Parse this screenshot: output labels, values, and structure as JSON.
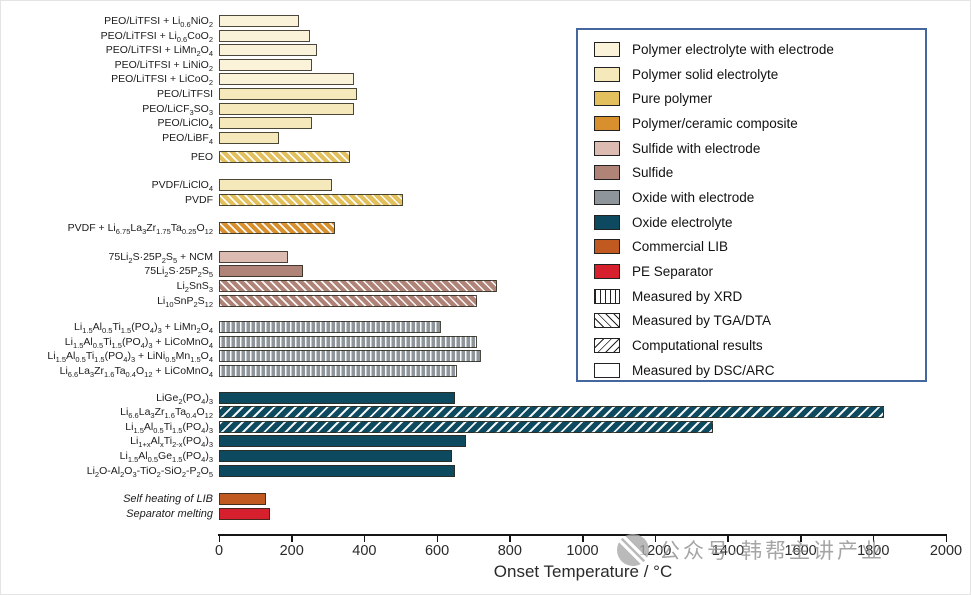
{
  "watermark": {
    "text": "公众号·韩帮主讲产业"
  },
  "chart_data": {
    "type": "bar",
    "orientation": "horizontal",
    "xlabel": "Onset Temperature / °C",
    "xlim": [
      0,
      2000
    ],
    "xticks": [
      0,
      200,
      400,
      600,
      800,
      1000,
      1200,
      1400,
      1600,
      1800,
      2000
    ],
    "grid": false,
    "legend_position": "upper right",
    "categories": {
      "polymer_with_electrode": {
        "label": "Polymer electrolyte with electrode",
        "color": "#FAF3D9"
      },
      "polymer_solid": {
        "label": "Polymer solid electrolyte",
        "color": "#F5E9BC"
      },
      "pure_polymer": {
        "label": "Pure polymer",
        "color": "#E2C05E"
      },
      "composite": {
        "label": "Polymer/ceramic composite",
        "color": "#D8902F"
      },
      "sulfide_with_electrode": {
        "label": "Sulfide with electrode",
        "color": "#DCBBB3"
      },
      "sulfide": {
        "label": "Sulfide",
        "color": "#B08378"
      },
      "oxide_with_electrode": {
        "label": "Oxide with electrode",
        "color": "#8E969C"
      },
      "oxide": {
        "label": "Oxide electrolyte",
        "color": "#0E4A5F"
      },
      "commercial_lib": {
        "label": "Commercial LIB",
        "color": "#C05A21"
      },
      "pe_separator": {
        "label": "PE Separator",
        "color": "#D6202D"
      }
    },
    "legend": [
      {
        "label": "Polymer electrolyte with electrode",
        "color": "#FAF3D9"
      },
      {
        "label": "Polymer solid electrolyte",
        "color": "#F5E9BC"
      },
      {
        "label": "Pure polymer",
        "color": "#E2C05E"
      },
      {
        "label": "Polymer/ceramic composite",
        "color": "#D8902F"
      },
      {
        "label": "Sulfide with electrode",
        "color": "#DCBBB3"
      },
      {
        "label": "Sulfide",
        "color": "#B08378"
      },
      {
        "label": "Oxide with electrode",
        "color": "#8E969C"
      },
      {
        "label": "Oxide electrolyte",
        "color": "#0E4A5F"
      },
      {
        "label": "Commercial LIB",
        "color": "#C05A21"
      },
      {
        "label": "PE Separator",
        "color": "#D6202D"
      },
      {
        "label": "Measured by XRD",
        "pattern": "vertical"
      },
      {
        "label": "Measured by TGA/DTA",
        "pattern": "diag-forward"
      },
      {
        "label": "Computational results",
        "pattern": "diag-back"
      },
      {
        "label": "Measured by DSC/ARC",
        "pattern": "none"
      }
    ],
    "bars": [
      {
        "label": "PEO/LiTFSI + Li~0.6~NiO~2~",
        "value": 220,
        "category": "polymer_with_electrode",
        "hatch": "none",
        "group": 0,
        "italic": false
      },
      {
        "label": "PEO/LiTFSI + Li~0.6~CoO~2~",
        "value": 250,
        "category": "polymer_with_electrode",
        "hatch": "none",
        "group": 0,
        "italic": false
      },
      {
        "label": "PEO/LiTFSI + LiMn~2~O~4~",
        "value": 270,
        "category": "polymer_with_electrode",
        "hatch": "none",
        "group": 0,
        "italic": false
      },
      {
        "label": "PEO/LiTFSI + LiNiO~2~",
        "value": 255,
        "category": "polymer_with_electrode",
        "hatch": "none",
        "group": 0,
        "italic": false
      },
      {
        "label": "PEO/LiTFSI + LiCoO~2~",
        "value": 370,
        "category": "polymer_with_electrode",
        "hatch": "none",
        "group": 0,
        "italic": false
      },
      {
        "label": "PEO/LiTFSI",
        "value": 380,
        "category": "polymer_solid",
        "hatch": "none",
        "group": 0,
        "italic": false
      },
      {
        "label": "PEO/LiCF~3~SO~3~",
        "value": 370,
        "category": "polymer_solid",
        "hatch": "none",
        "group": 0,
        "italic": false
      },
      {
        "label": "PEO/LiClO~4~",
        "value": 255,
        "category": "polymer_solid",
        "hatch": "none",
        "group": 0,
        "italic": false
      },
      {
        "label": "PEO/LiBF~4~",
        "value": 165,
        "category": "polymer_solid",
        "hatch": "none",
        "group": 0,
        "italic": false
      },
      {
        "label": "PEO",
        "value": 360,
        "category": "pure_polymer",
        "hatch": "tga",
        "group": 1,
        "italic": false
      },
      {
        "label": "PVDF/LiClO~4~",
        "value": 310,
        "category": "polymer_solid",
        "hatch": "none",
        "group": 2,
        "italic": false
      },
      {
        "label": "PVDF",
        "value": 505,
        "category": "pure_polymer",
        "hatch": "tga",
        "group": 2,
        "italic": false
      },
      {
        "label": "PVDF + Li~6.75~La~3~Zr~1.75~Ta~0.25~O~12~",
        "value": 320,
        "category": "composite",
        "hatch": "tga",
        "group": 3,
        "italic": false
      },
      {
        "label": "75Li~2~S·25P~2~S~5~ + NCM",
        "value": 190,
        "category": "sulfide_with_electrode",
        "hatch": "none",
        "group": 4,
        "italic": false
      },
      {
        "label": "75Li~2~S·25P~2~S~5~",
        "value": 230,
        "category": "sulfide",
        "hatch": "none",
        "group": 4,
        "italic": false
      },
      {
        "label": "Li~2~SnS~3~",
        "value": 765,
        "category": "sulfide",
        "hatch": "tga",
        "group": 4,
        "italic": false
      },
      {
        "label": "Li~10~SnP~2~S~12~",
        "value": 710,
        "category": "sulfide",
        "hatch": "tga",
        "group": 4,
        "italic": false
      },
      {
        "label": "Li~1.5~Al~0.5~Ti~1.5~(PO~4~)~3~ + LiMn~2~O~4~",
        "value": 610,
        "category": "oxide_with_electrode",
        "hatch": "xrd",
        "group": 5,
        "italic": false
      },
      {
        "label": "Li~1.5~Al~0.5~Ti~1.5~(PO~4~)~3~ + LiCoMnO~4~",
        "value": 710,
        "category": "oxide_with_electrode",
        "hatch": "xrd",
        "group": 5,
        "italic": false
      },
      {
        "label": "Li~1.5~Al~0.5~Ti~1.5~(PO~4~)~3~ + LiNi~0.5~Mn~1.5~O~4~",
        "value": 720,
        "category": "oxide_with_electrode",
        "hatch": "xrd",
        "group": 5,
        "italic": false
      },
      {
        "label": "Li~6.6~La~3~Zr~1.6~Ta~0.4~O~12~ + LiCoMnO~4~",
        "value": 655,
        "category": "oxide_with_electrode",
        "hatch": "xrd",
        "group": 5,
        "italic": false
      },
      {
        "label": "LiGe~2~(PO~4~)~3~",
        "value": 650,
        "category": "oxide",
        "hatch": "none",
        "group": 6,
        "italic": false
      },
      {
        "label": "Li~6.6~La~3~Zr~1.6~Ta~0.4~O~12~",
        "value": 1830,
        "category": "oxide",
        "hatch": "comp",
        "group": 6,
        "italic": false
      },
      {
        "label": "Li~1.5~Al~0.5~Ti~1.5~(PO~4~)~3~",
        "value": 1360,
        "category": "oxide",
        "hatch": "comp",
        "group": 6,
        "italic": false
      },
      {
        "label": "Li~1+x~Al~x~Ti~2-x~(PO~4~)~3~",
        "value": 680,
        "category": "oxide",
        "hatch": "none",
        "group": 6,
        "italic": false
      },
      {
        "label": "Li~1.5~Al~0.5~Ge~1.5~(PO~4~)~3~",
        "value": 640,
        "category": "oxide",
        "hatch": "none",
        "group": 6,
        "italic": false
      },
      {
        "label": "Li~2~O-Al~2~O~3~-TiO~2~-SiO~2~-P~2~O~5~",
        "value": 650,
        "category": "oxide",
        "hatch": "none",
        "group": 6,
        "italic": false
      },
      {
        "label": "Self heating of LIB",
        "value": 130,
        "category": "commercial_lib",
        "hatch": "none",
        "group": 7,
        "italic": true
      },
      {
        "label": "Separator melting",
        "value": 140,
        "category": "pe_separator",
        "hatch": "none",
        "group": 7,
        "italic": true
      }
    ]
  }
}
